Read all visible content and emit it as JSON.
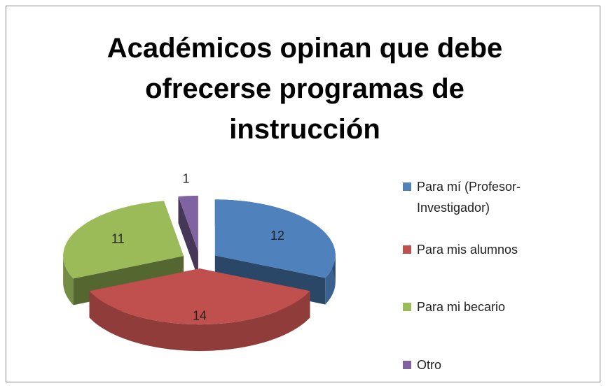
{
  "chart_data": {
    "type": "pie3d",
    "title": "Académicos opinan que debe ofrecerse programas de instrucción",
    "categories": [
      "Para mí (Profesor-Investigador)",
      "Para mis alumnos",
      "Para mi becario",
      "Otro"
    ],
    "values": [
      12,
      14,
      11,
      1
    ],
    "colors": [
      "#4f81bd",
      "#c0504d",
      "#9bbb59",
      "#8064a2"
    ],
    "legend": "right"
  }
}
